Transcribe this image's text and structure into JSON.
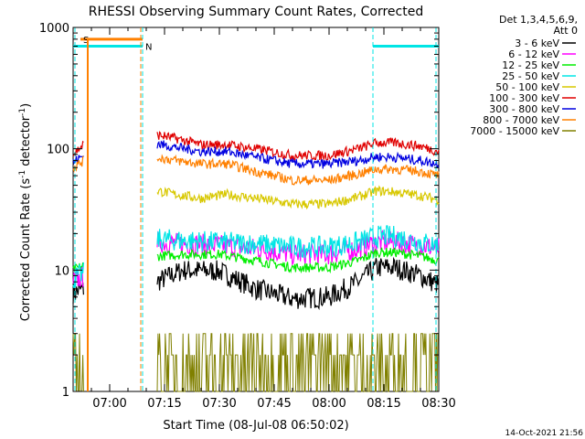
{
  "chart_data": {
    "type": "line",
    "title": "RHESSI Observing Summary Count Rates, Corrected",
    "xlabel": "Start Time (08-Jul-08 06:50:02)",
    "ylabel": "Corrected Count Rate (s⁻¹ detector⁻¹)",
    "ylabel_main": "Corrected Count Rate (s",
    "ylabel_sup1": "-1",
    "ylabel_mid": " detector",
    "ylabel_sup2": "-1",
    "ylabel_end": ")",
    "y_scale": "log",
    "ylim": [
      1,
      1000
    ],
    "xlim_minutes": [
      0,
      100
    ],
    "x_ticks": [
      {
        "label": "07:00",
        "minute": 10
      },
      {
        "label": "07:15",
        "minute": 25
      },
      {
        "label": "07:30",
        "minute": 40
      },
      {
        "label": "07:45",
        "minute": 55
      },
      {
        "label": "08:00",
        "minute": 70
      },
      {
        "label": "08:15",
        "minute": 85
      },
      {
        "label": "08:30",
        "minute": 100
      }
    ],
    "y_ticks": [
      {
        "label": "1",
        "value": 1
      },
      {
        "label": "10",
        "value": 10
      },
      {
        "label": "100",
        "value": 100
      },
      {
        "label": "1000",
        "value": 1000
      }
    ],
    "legend_header_lines": [
      "Det 1,3,4,5,6,9,",
      "Att 0"
    ],
    "legend_position": "right",
    "series": [
      {
        "name": "3 - 6 keV",
        "color": "#000000",
        "points": [
          [
            0,
            6.5
          ],
          [
            3,
            7
          ],
          [
            23,
            8
          ],
          [
            30,
            10
          ],
          [
            40,
            9.8
          ],
          [
            50,
            7
          ],
          [
            60,
            5.8
          ],
          [
            70,
            6
          ],
          [
            78,
            8
          ],
          [
            83,
            10.5
          ],
          [
            88,
            10.5
          ],
          [
            95,
            9
          ],
          [
            100,
            7.5
          ]
        ]
      },
      {
        "name": "6 - 12 keV",
        "color": "#ff00ff",
        "points": [
          [
            0,
            8
          ],
          [
            3,
            9
          ],
          [
            23,
            17
          ],
          [
            30,
            16.5
          ],
          [
            40,
            16
          ],
          [
            50,
            15
          ],
          [
            60,
            13.5
          ],
          [
            70,
            13.5
          ],
          [
            78,
            15
          ],
          [
            83,
            17
          ],
          [
            88,
            17
          ],
          [
            95,
            16
          ],
          [
            100,
            15
          ]
        ]
      },
      {
        "name": "12 - 25 keV",
        "color": "#00ee00",
        "points": [
          [
            0,
            10
          ],
          [
            3,
            11
          ],
          [
            23,
            13
          ],
          [
            30,
            13.5
          ],
          [
            40,
            13.5
          ],
          [
            50,
            12
          ],
          [
            60,
            10.5
          ],
          [
            70,
            10.5
          ],
          [
            78,
            12
          ],
          [
            83,
            14
          ],
          [
            88,
            14
          ],
          [
            95,
            13
          ],
          [
            100,
            12
          ]
        ]
      },
      {
        "name": "25 - 50 keV",
        "color": "#00e5e5",
        "points": [
          [
            0,
            8.5
          ],
          [
            3,
            9.5
          ],
          [
            23,
            18
          ],
          [
            30,
            17.5
          ],
          [
            40,
            17
          ],
          [
            50,
            16.5
          ],
          [
            60,
            15.5
          ],
          [
            70,
            15.5
          ],
          [
            78,
            17
          ],
          [
            83,
            19
          ],
          [
            88,
            19
          ],
          [
            95,
            17
          ],
          [
            100,
            16
          ]
        ]
      },
      {
        "name": "50 - 100 keV",
        "color": "#d8c800",
        "points": [
          [
            23,
            45
          ],
          [
            28,
            42
          ],
          [
            35,
            39
          ],
          [
            42,
            42
          ],
          [
            50,
            39
          ],
          [
            60,
            35
          ],
          [
            70,
            35
          ],
          [
            78,
            40
          ],
          [
            83,
            45
          ],
          [
            88,
            44
          ],
          [
            95,
            41
          ],
          [
            100,
            38
          ]
        ]
      },
      {
        "name": "100 - 300 keV",
        "color": "#e00000",
        "points": [
          [
            0,
            90
          ],
          [
            3,
            110
          ],
          [
            23,
            130
          ],
          [
            28,
            122
          ],
          [
            35,
            108
          ],
          [
            42,
            108
          ],
          [
            50,
            100
          ],
          [
            60,
            88
          ],
          [
            70,
            88
          ],
          [
            78,
            100
          ],
          [
            83,
            112
          ],
          [
            88,
            112
          ],
          [
            95,
            105
          ],
          [
            100,
            95
          ]
        ]
      },
      {
        "name": "300 - 800 keV",
        "color": "#0000e0",
        "points": [
          [
            0,
            78
          ],
          [
            3,
            88
          ],
          [
            23,
            110
          ],
          [
            28,
            103
          ],
          [
            35,
            95
          ],
          [
            42,
            95
          ],
          [
            50,
            85
          ],
          [
            60,
            75
          ],
          [
            70,
            75
          ],
          [
            78,
            80
          ],
          [
            83,
            86
          ],
          [
            88,
            85
          ],
          [
            95,
            80
          ],
          [
            100,
            75
          ]
        ]
      },
      {
        "name": "800 - 7000 keV",
        "color": "#ff8000",
        "points": [
          [
            0,
            70
          ],
          [
            3,
            80
          ],
          [
            23,
            85
          ],
          [
            28,
            80
          ],
          [
            35,
            75
          ],
          [
            42,
            75
          ],
          [
            50,
            65
          ],
          [
            60,
            55
          ],
          [
            70,
            55
          ],
          [
            78,
            62
          ],
          [
            83,
            68
          ],
          [
            88,
            68
          ],
          [
            95,
            65
          ],
          [
            100,
            60
          ]
        ]
      },
      {
        "name": "7000 - 15000 keV",
        "color": "#808000",
        "points": [
          [
            0,
            2
          ],
          [
            3,
            1.5
          ],
          [
            23,
            1.8
          ],
          [
            30,
            2
          ],
          [
            40,
            2
          ],
          [
            45,
            3
          ],
          [
            50,
            2.5
          ],
          [
            58,
            2
          ],
          [
            62,
            1.5
          ],
          [
            70,
            2
          ],
          [
            78,
            3
          ],
          [
            83,
            4
          ],
          [
            88,
            3.5
          ],
          [
            95,
            3
          ],
          [
            100,
            2.5
          ]
        ]
      }
    ],
    "shaded_lines": [
      {
        "label": "S",
        "color": "#ff8000",
        "y": 800,
        "x0": 2,
        "x1": 19
      },
      {
        "label": "N",
        "color": "#00e5e5",
        "y": 700,
        "x0": 0,
        "x1": 19
      }
    ],
    "attenuator_segments": [
      [
        0,
        2
      ],
      [
        2,
        19
      ],
      [
        82,
        100
      ]
    ],
    "timestamp": "14-Oct-2021 21:56"
  }
}
